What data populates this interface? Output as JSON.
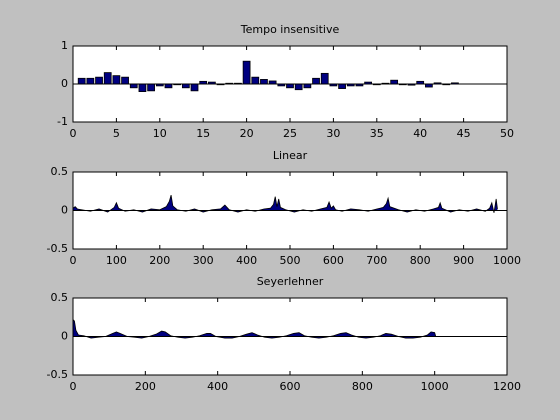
{
  "chart_data": [
    {
      "type": "bar",
      "title": "Tempo insensitive",
      "color": "#000080",
      "x": [
        1,
        2,
        3,
        4,
        5,
        6,
        7,
        8,
        9,
        10,
        11,
        12,
        13,
        14,
        15,
        16,
        17,
        18,
        19,
        20,
        21,
        22,
        23,
        24,
        25,
        26,
        27,
        28,
        29,
        30,
        31,
        32,
        33,
        34,
        35,
        36,
        37,
        38,
        39,
        40,
        41,
        42,
        43,
        44
      ],
      "values": [
        0.15,
        0.15,
        0.18,
        0.3,
        0.22,
        0.18,
        -0.1,
        -0.2,
        -0.18,
        -0.05,
        -0.1,
        -0.02,
        -0.1,
        -0.18,
        0.07,
        0.05,
        -0.02,
        0.02,
        0.02,
        0.6,
        0.18,
        0.12,
        0.08,
        -0.05,
        -0.1,
        -0.15,
        -0.1,
        0.15,
        0.28,
        -0.05,
        -0.12,
        -0.05,
        -0.05,
        0.05,
        -0.02,
        0.02,
        0.1,
        -0.02,
        -0.03,
        0.07,
        -0.08,
        0.03,
        -0.02,
        0.03
      ],
      "xlim": [
        0,
        50
      ],
      "xticks": [
        0,
        5,
        10,
        15,
        20,
        25,
        30,
        35,
        40,
        45,
        50
      ],
      "ylim": [
        -1,
        1
      ],
      "yticks": [
        -1,
        0,
        1
      ]
    },
    {
      "type": "area",
      "title": "Linear",
      "color": "#000080",
      "x": [
        0,
        5,
        10,
        20,
        40,
        60,
        80,
        95,
        100,
        105,
        120,
        140,
        160,
        180,
        200,
        215,
        222,
        226,
        230,
        240,
        260,
        280,
        300,
        320,
        340,
        350,
        360,
        380,
        400,
        420,
        440,
        455,
        462,
        466,
        470,
        474,
        478,
        490,
        510,
        530,
        550,
        570,
        585,
        590,
        595,
        600,
        605,
        620,
        640,
        660,
        680,
        700,
        715,
        722,
        726,
        730,
        750,
        770,
        790,
        810,
        830,
        842,
        846,
        850,
        870,
        890,
        910,
        930,
        950,
        960,
        965,
        970,
        975,
        978
      ],
      "values": [
        0.03,
        0.05,
        0.02,
        0.01,
        -0.01,
        0.02,
        -0.02,
        0.04,
        0.1,
        0.03,
        -0.01,
        0.01,
        -0.02,
        0.02,
        0.01,
        0.05,
        0.12,
        0.2,
        0.06,
        0.01,
        -0.01,
        0.02,
        -0.02,
        0.01,
        0.02,
        0.07,
        0.01,
        -0.02,
        0.01,
        -0.01,
        0.02,
        0.03,
        0.08,
        0.18,
        0.05,
        0.15,
        0.04,
        0.01,
        -0.02,
        0.01,
        -0.01,
        0.02,
        0.04,
        0.11,
        0.03,
        0.06,
        0.01,
        -0.01,
        0.02,
        0.01,
        -0.01,
        0.02,
        0.04,
        0.09,
        0.16,
        0.05,
        0.01,
        -0.02,
        0.01,
        -0.01,
        0.02,
        0.04,
        0.1,
        0.03,
        -0.02,
        0.01,
        -0.01,
        0.02,
        -0.01,
        0.03,
        0.1,
        -0.03,
        0.15,
        0.02
      ],
      "xlim": [
        0,
        1000
      ],
      "xticks": [
        0,
        100,
        200,
        300,
        400,
        500,
        600,
        700,
        800,
        900,
        1000
      ],
      "ylim": [
        -0.5,
        0.5
      ],
      "yticks": [
        -0.5,
        0,
        0.5
      ]
    },
    {
      "type": "area",
      "title": "Seyerlehner",
      "color": "#000080",
      "x": [
        0,
        4,
        8,
        15,
        30,
        50,
        70,
        90,
        110,
        120,
        130,
        150,
        170,
        190,
        210,
        230,
        245,
        255,
        270,
        290,
        310,
        330,
        350,
        370,
        380,
        395,
        420,
        440,
        460,
        480,
        495,
        510,
        530,
        550,
        570,
        590,
        610,
        625,
        640,
        660,
        680,
        700,
        720,
        740,
        755,
        770,
        790,
        810,
        830,
        850,
        865,
        880,
        900,
        920,
        940,
        960,
        980,
        990,
        1000,
        1003
      ],
      "values": [
        0.22,
        0.2,
        0.08,
        0.02,
        0.01,
        -0.02,
        -0.01,
        0,
        0.04,
        0.06,
        0.04,
        0,
        -0.01,
        -0.02,
        0,
        0.03,
        0.07,
        0.06,
        0.01,
        -0.01,
        -0.02,
        -0.01,
        0.01,
        0.04,
        0.04,
        0,
        -0.02,
        -0.02,
        0,
        0.03,
        0.05,
        0.02,
        -0.01,
        -0.02,
        -0.01,
        0.01,
        0.04,
        0.05,
        0.01,
        -0.01,
        -0.02,
        -0.01,
        0.01,
        0.04,
        0.05,
        0.02,
        -0.01,
        -0.02,
        -0.01,
        0.01,
        0.04,
        0.03,
        0,
        -0.02,
        -0.02,
        -0.01,
        0.02,
        0.06,
        0.05,
        0
      ],
      "xlim": [
        0,
        1200
      ],
      "xticks": [
        0,
        200,
        400,
        600,
        800,
        1000,
        1200
      ],
      "ylim": [
        -0.5,
        0.5
      ],
      "yticks": [
        -0.5,
        0,
        0.5
      ]
    }
  ]
}
